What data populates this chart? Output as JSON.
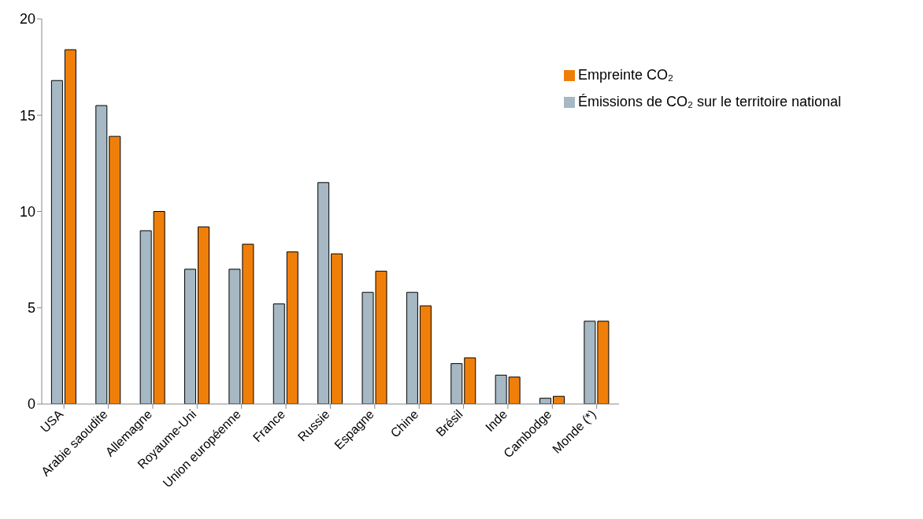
{
  "chart_data": {
    "type": "bar",
    "categories": [
      "USA",
      "Arabie saoudite",
      "Allemagne",
      "Royaume-Uni",
      "Union européenne",
      "France",
      "Russie",
      "Espagne",
      "Chine",
      "Brésil",
      "Inde",
      "Cambodge",
      "Monde (*)"
    ],
    "series": [
      {
        "name": "Émissions de CO₂ sur le territoire national",
        "color": "#a5b8c3",
        "values": [
          16.8,
          15.5,
          9.0,
          7.0,
          7.0,
          5.2,
          11.5,
          5.8,
          5.8,
          2.1,
          1.5,
          0.3,
          4.3
        ]
      },
      {
        "name": "Empreinte CO₂",
        "color": "#f07f09",
        "values": [
          18.4,
          13.9,
          10.0,
          9.2,
          8.3,
          7.9,
          7.8,
          6.9,
          5.1,
          2.4,
          1.4,
          0.4,
          4.3
        ]
      }
    ],
    "ylim": [
      0,
      20
    ],
    "yticks": [
      0,
      5,
      10,
      15,
      20
    ],
    "grid": false,
    "legend": "top right"
  }
}
